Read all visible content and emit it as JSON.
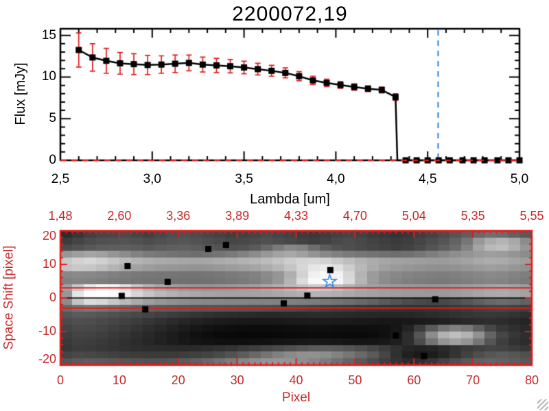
{
  "colors": {
    "background": "#ffffff",
    "black": "#000000",
    "red_text": "#c62a2a",
    "red_line": "#e31b1b",
    "blue_line": "#2e7fd9",
    "star_blue": "#3b8bee"
  },
  "chart_data": [
    {
      "type": "line",
      "title": "2200072,19",
      "xlabel": "Lambda [um]",
      "ylabel": "Flux [mJy]",
      "xlim": [
        2.5,
        5.0
      ],
      "ylim": [
        0,
        15.8
      ],
      "grid": false,
      "legend": false,
      "xticks": {
        "values": [
          2.5,
          3.0,
          3.5,
          4.0,
          4.5,
          5.0
        ],
        "labels": [
          "2,5",
          "3,0",
          "3,5",
          "4,0",
          "4,5",
          "5,0"
        ],
        "minor_step": 0.1
      },
      "yticks": {
        "values": [
          0,
          5,
          10,
          15
        ],
        "labels": [
          "0",
          "5",
          "10",
          "15"
        ],
        "minor_step": 1
      },
      "series": [
        {
          "name": "flux-spectrum",
          "marker": "filled-square",
          "line_color": "#000000",
          "error_color": "#e31b1b",
          "x": [
            2.6,
            2.675,
            2.75,
            2.825,
            2.9,
            2.975,
            3.05,
            3.125,
            3.2,
            3.275,
            3.35,
            3.425,
            3.5,
            3.575,
            3.65,
            3.725,
            3.8,
            3.875,
            3.95,
            4.025,
            4.1,
            4.175,
            4.25,
            4.325
          ],
          "y": [
            13.25,
            12.35,
            11.95,
            11.65,
            11.55,
            11.45,
            11.5,
            11.6,
            11.7,
            11.5,
            11.4,
            11.3,
            11.15,
            10.95,
            10.75,
            10.5,
            10.1,
            9.6,
            9.3,
            9.05,
            8.8,
            8.6,
            8.45,
            7.6
          ],
          "yerr": [
            2.05,
            1.65,
            1.5,
            1.3,
            1.25,
            1.15,
            1.05,
            1.05,
            0.95,
            0.9,
            0.85,
            0.8,
            0.75,
            0.7,
            0.65,
            0.6,
            0.55,
            0.5,
            0.45,
            0.4,
            0.38,
            0.35,
            0.35,
            0.4
          ]
        },
        {
          "name": "zero-level-tail",
          "marker": "filled-square",
          "line_color": "#000000",
          "x": [
            4.38,
            4.44,
            4.5,
            4.56,
            4.62,
            4.69,
            4.75,
            4.81,
            4.88,
            4.94,
            5.0
          ],
          "y": [
            0,
            0,
            0,
            0,
            0,
            0,
            0,
            0,
            0,
            0,
            0
          ]
        }
      ],
      "annotations": {
        "drop_to_zero_at_x": 4.335,
        "vline": {
          "x": 4.557,
          "style": "dashed",
          "color": "#2e7fd9"
        },
        "hline": {
          "y": 0,
          "style": "dashed",
          "color": "#e31b1b"
        }
      }
    },
    {
      "type": "heatmap",
      "xlabel": "Pixel",
      "ylabel": "Space Shift [pixel]",
      "xlim": [
        0,
        80
      ],
      "ylim": [
        -20,
        20
      ],
      "axis_color": "#e31b1b",
      "xticks": {
        "values": [
          0,
          10,
          20,
          30,
          40,
          50,
          60,
          70,
          80
        ],
        "labels": [
          "0",
          "10",
          "20",
          "30",
          "40",
          "50",
          "60",
          "70",
          "80"
        ],
        "minor_step": 1
      },
      "yticks": {
        "values": [
          20,
          10,
          0,
          -10,
          -20
        ],
        "labels": [
          "20",
          "10",
          "0",
          "-10",
          "-20"
        ],
        "minor_step": 2
      },
      "top_axis": {
        "meaning": "wavelength [um] at pixel position",
        "positions": [
          0,
          10,
          20,
          30,
          40,
          50,
          60,
          70,
          80
        ],
        "labels": [
          "1,48",
          "2,60",
          "3,36",
          "3,89",
          "4,33",
          "4,70",
          "5,04",
          "5,35",
          "5,55"
        ]
      },
      "overlays": {
        "hlines": [
          {
            "y": 3,
            "color": "#e31b1b",
            "width": 2
          },
          {
            "y": 0,
            "color": "#000000",
            "width": 1.5
          },
          {
            "y": -3,
            "color": "#e31b1b",
            "width": 2
          }
        ],
        "star": {
          "x": 45.7,
          "y": 4.9,
          "color": "#3b8bee"
        },
        "squares": [
          [
            11.4,
            9.5
          ],
          [
            25.1,
            14.6
          ],
          [
            28.1,
            15.8
          ],
          [
            18.2,
            4.8
          ],
          [
            10.4,
            0.6
          ],
          [
            41.9,
            0.7
          ],
          [
            37.9,
            -1.6
          ],
          [
            14.4,
            -3.4
          ],
          [
            45.8,
            8.3
          ],
          [
            63.6,
            -0.4
          ],
          [
            56.9,
            -11.2
          ],
          [
            61.7,
            -17.3
          ]
        ]
      },
      "grid_image": {
        "cols": 40,
        "rows": 20,
        "gray_values": [
          [
            45,
            55,
            65,
            70,
            72,
            75,
            70,
            65,
            72,
            78,
            80,
            76,
            72,
            68,
            64,
            66,
            70,
            74,
            70,
            66,
            60,
            58,
            62,
            66,
            70,
            66,
            60,
            56,
            52,
            56,
            62,
            68,
            75,
            85,
            95,
            105,
            112,
            108,
            98,
            90
          ],
          [
            60,
            68,
            75,
            80,
            82,
            84,
            80,
            76,
            80,
            84,
            86,
            82,
            78,
            74,
            70,
            72,
            76,
            80,
            76,
            72,
            66,
            62,
            66,
            72,
            76,
            72,
            66,
            62,
            58,
            62,
            68,
            76,
            84,
            98,
            118,
            152,
            172,
            180,
            168,
            140
          ],
          [
            75,
            82,
            88,
            92,
            94,
            95,
            92,
            88,
            92,
            95,
            96,
            92,
            88,
            84,
            80,
            82,
            90,
            104,
            122,
            136,
            130,
            110,
            92,
            82,
            78,
            74,
            70,
            66,
            62,
            66,
            74,
            84,
            94,
            106,
            130,
            165,
            185,
            190,
            175,
            150
          ],
          [
            150,
            158,
            165,
            160,
            150,
            140,
            130,
            122,
            118,
            115,
            112,
            110,
            112,
            116,
            122,
            130,
            140,
            152,
            162,
            168,
            160,
            148,
            136,
            128,
            122,
            118,
            115,
            112,
            110,
            112,
            118,
            126,
            134,
            142,
            148,
            155,
            158,
            155,
            148,
            140
          ],
          [
            200,
            210,
            215,
            208,
            198,
            188,
            180,
            174,
            170,
            168,
            166,
            165,
            166,
            170,
            174,
            178,
            182,
            188,
            195,
            205,
            212,
            215,
            210,
            200,
            190,
            180,
            172,
            166,
            162,
            160,
            158,
            156,
            155,
            158,
            162,
            168,
            172,
            170,
            164,
            158
          ],
          [
            195,
            200,
            198,
            190,
            180,
            170,
            162,
            156,
            152,
            150,
            148,
            147,
            148,
            152,
            156,
            160,
            165,
            172,
            182,
            196,
            215,
            230,
            235,
            225,
            205,
            185,
            170,
            160,
            154,
            150,
            147,
            145,
            144,
            146,
            150,
            155,
            158,
            156,
            150,
            145
          ],
          [
            135,
            138,
            136,
            132,
            128,
            124,
            121,
            119,
            118,
            117,
            116,
            116,
            117,
            119,
            122,
            126,
            130,
            138,
            150,
            175,
            210,
            240,
            250,
            242,
            215,
            180,
            155,
            142,
            136,
            132,
            129,
            127,
            126,
            128,
            131,
            135,
            138,
            136,
            131,
            127
          ],
          [
            128,
            130,
            128,
            125,
            122,
            119,
            117,
            115,
            114,
            113,
            112,
            112,
            113,
            115,
            118,
            122,
            127,
            136,
            150,
            180,
            220,
            248,
            255,
            246,
            218,
            182,
            155,
            140,
            132,
            127,
            124,
            122,
            121,
            123,
            126,
            130,
            133,
            131,
            126,
            122
          ],
          [
            160,
            200,
            235,
            250,
            245,
            225,
            200,
            180,
            168,
            160,
            155,
            152,
            150,
            152,
            155,
            158,
            162,
            168,
            176,
            185,
            195,
            205,
            200,
            190,
            178,
            168,
            162,
            158,
            155,
            153,
            152,
            151,
            152,
            155,
            158,
            162,
            166,
            168,
            164,
            158
          ],
          [
            150,
            230,
            252,
            255,
            250,
            235,
            215,
            198,
            186,
            178,
            172,
            168,
            165,
            163,
            162,
            162,
            163,
            165,
            168,
            172,
            176,
            180,
            178,
            174,
            169,
            165,
            162,
            159,
            157,
            155,
            154,
            153,
            154,
            157,
            161,
            166,
            170,
            172,
            168,
            162
          ],
          [
            140,
            195,
            220,
            215,
            200,
            185,
            170,
            158,
            150,
            144,
            140,
            137,
            135,
            134,
            133,
            132,
            131,
            130,
            129,
            128,
            126,
            124,
            120,
            115,
            110,
            104,
            98,
            90,
            82,
            76,
            72,
            70,
            72,
            78,
            86,
            95,
            103,
            108,
            104,
            98
          ],
          [
            105,
            115,
            120,
            116,
            110,
            104,
            99,
            95,
            92,
            90,
            88,
            86,
            85,
            84,
            83,
            82,
            80,
            78,
            76,
            74,
            71,
            68,
            65,
            62,
            59,
            56,
            54,
            52,
            51,
            50,
            50,
            51,
            53,
            56,
            60,
            64,
            67,
            69,
            66,
            62
          ],
          [
            85,
            90,
            88,
            84,
            80,
            76,
            72,
            68,
            64,
            60,
            56,
            52,
            49,
            46,
            44,
            42,
            41,
            40,
            40,
            41,
            42,
            43,
            43,
            42,
            41,
            40,
            39,
            38,
            38,
            39,
            41,
            44,
            47,
            50,
            53,
            55,
            56,
            54,
            50,
            46
          ],
          [
            75,
            80,
            78,
            74,
            70,
            65,
            60,
            54,
            48,
            43,
            38,
            34,
            31,
            28,
            26,
            25,
            24,
            24,
            25,
            26,
            27,
            28,
            28,
            27,
            26,
            25,
            24,
            23,
            23,
            24,
            26,
            29,
            33,
            37,
            41,
            44,
            46,
            44,
            40,
            36
          ],
          [
            68,
            74,
            72,
            68,
            63,
            58,
            52,
            46,
            40,
            34,
            28,
            23,
            19,
            16,
            14,
            13,
            12,
            12,
            13,
            14,
            15,
            16,
            16,
            15,
            14,
            14,
            15,
            17,
            22,
            35,
            60,
            90,
            115,
            128,
            120,
            95,
            70,
            55,
            48,
            42
          ],
          [
            62,
            68,
            66,
            62,
            57,
            52,
            46,
            40,
            34,
            28,
            22,
            17,
            13,
            10,
            9,
            8,
            8,
            8,
            9,
            10,
            11,
            12,
            12,
            11,
            10,
            10,
            12,
            16,
            25,
            45,
            85,
            140,
            178,
            190,
            178,
            145,
            100,
            70,
            55,
            46
          ],
          [
            58,
            63,
            61,
            58,
            53,
            48,
            43,
            38,
            33,
            28,
            24,
            20,
            18,
            16,
            15,
            15,
            16,
            17,
            19,
            21,
            23,
            24,
            24,
            23,
            21,
            20,
            21,
            24,
            30,
            45,
            75,
            115,
            148,
            160,
            148,
            118,
            85,
            62,
            50,
            44
          ],
          [
            55,
            60,
            58,
            55,
            52,
            49,
            46,
            44,
            43,
            42,
            42,
            43,
            45,
            48,
            52,
            57,
            62,
            68,
            74,
            80,
            86,
            90,
            92,
            90,
            85,
            78,
            70,
            60,
            48,
            38,
            34,
            36,
            42,
            50,
            58,
            64,
            68,
            66,
            60,
            54
          ],
          [
            68,
            73,
            71,
            68,
            65,
            62,
            60,
            58,
            58,
            59,
            61,
            64,
            68,
            74,
            82,
            92,
            104,
            116,
            128,
            138,
            144,
            145,
            140,
            130,
            118,
            105,
            90,
            70,
            48,
            32,
            26,
            28,
            38,
            52,
            66,
            78,
            86,
            90,
            86,
            80
          ],
          [
            85,
            90,
            92,
            90,
            87,
            84,
            82,
            81,
            82,
            85,
            90,
            96,
            104,
            114,
            124,
            134,
            142,
            148,
            150,
            148,
            142,
            134,
            124,
            112,
            100,
            88,
            76,
            62,
            50,
            44,
            46,
            54,
            66,
            78,
            88,
            96,
            100,
            98,
            93,
            88
          ]
        ]
      }
    }
  ]
}
